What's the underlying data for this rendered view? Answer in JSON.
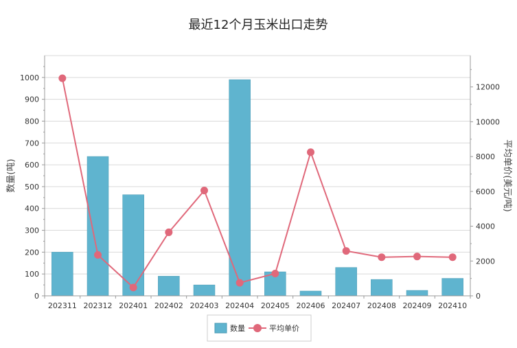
{
  "chart_data": {
    "type": "bar",
    "title": "最近12个月玉米出口走势",
    "categories": [
      "202311",
      "202312",
      "202401",
      "202402",
      "202403",
      "202404",
      "202405",
      "202406",
      "202407",
      "202408",
      "202409",
      "202410"
    ],
    "series": [
      {
        "name": "数量",
        "type": "bar",
        "axis": "left",
        "color": "#5fb4cf",
        "values": [
          200,
          638,
          463,
          90,
          50,
          990,
          110,
          22,
          130,
          75,
          25,
          80
        ]
      },
      {
        "name": "平均单价",
        "type": "line",
        "axis": "right",
        "color": "#e0687a",
        "values": [
          12500,
          2350,
          480,
          3650,
          6050,
          750,
          1280,
          8250,
          2580,
          2220,
          2260,
          2220
        ]
      }
    ],
    "ylabel": "数量(吨)",
    "ylim": [
      0,
      1100
    ],
    "yticks": [
      0,
      100,
      200,
      300,
      400,
      500,
      600,
      700,
      800,
      900,
      1000
    ],
    "y2label": "平均单价(美元/吨)",
    "y2lim": [
      0,
      13800
    ],
    "y2ticks": [
      0,
      2000,
      4000,
      6000,
      8000,
      10000,
      12000
    ],
    "grid": true,
    "legend_position": "bottom-center"
  }
}
